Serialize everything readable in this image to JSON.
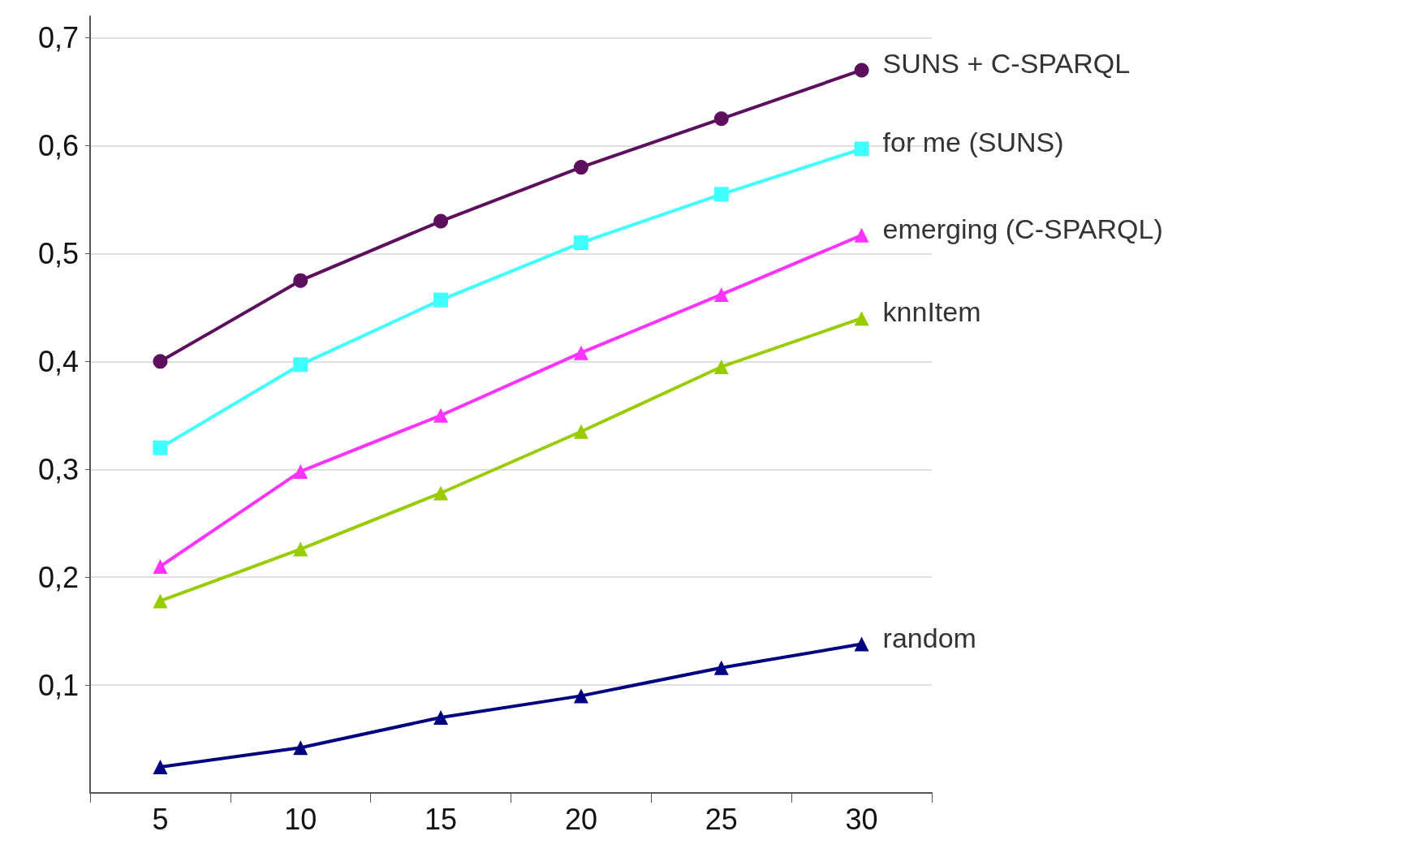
{
  "chart_data": {
    "type": "line",
    "categories": [
      "5",
      "10",
      "15",
      "20",
      "25",
      "30"
    ],
    "series": [
      {
        "name": "SUNS + C-SPARQL",
        "color": "#5c0f5c",
        "marker": "circle",
        "values": [
          0.4,
          0.475,
          0.53,
          0.58,
          0.625,
          0.67
        ]
      },
      {
        "name": "for me (SUNS)",
        "color": "#40ffff",
        "marker": "square",
        "values": [
          0.32,
          0.397,
          0.457,
          0.51,
          0.555,
          0.597
        ]
      },
      {
        "name": "emerging (C-SPARQL)",
        "color": "#ff33ff",
        "marker": "triangle",
        "values": [
          0.21,
          0.298,
          0.35,
          0.408,
          0.462,
          0.517
        ]
      },
      {
        "name": "knnItem",
        "color": "#99cc00",
        "marker": "triangle",
        "values": [
          0.178,
          0.226,
          0.278,
          0.335,
          0.395,
          0.44
        ]
      },
      {
        "name": "random",
        "color": "#000080",
        "marker": "triangle",
        "values": [
          0.024,
          0.042,
          0.07,
          0.09,
          0.116,
          0.138
        ]
      }
    ],
    "ylim": [
      0,
      0.72
    ],
    "yticks": [
      {
        "value": 0.1,
        "label": "0,1"
      },
      {
        "value": 0.2,
        "label": "0,2"
      },
      {
        "value": 0.3,
        "label": "0,3"
      },
      {
        "value": 0.4,
        "label": "0,4"
      },
      {
        "value": 0.5,
        "label": "0,5"
      },
      {
        "value": 0.6,
        "label": "0,6"
      },
      {
        "value": 0.7,
        "label": "0,7"
      }
    ],
    "grid": "y",
    "legend": false,
    "line_style": "solid"
  }
}
